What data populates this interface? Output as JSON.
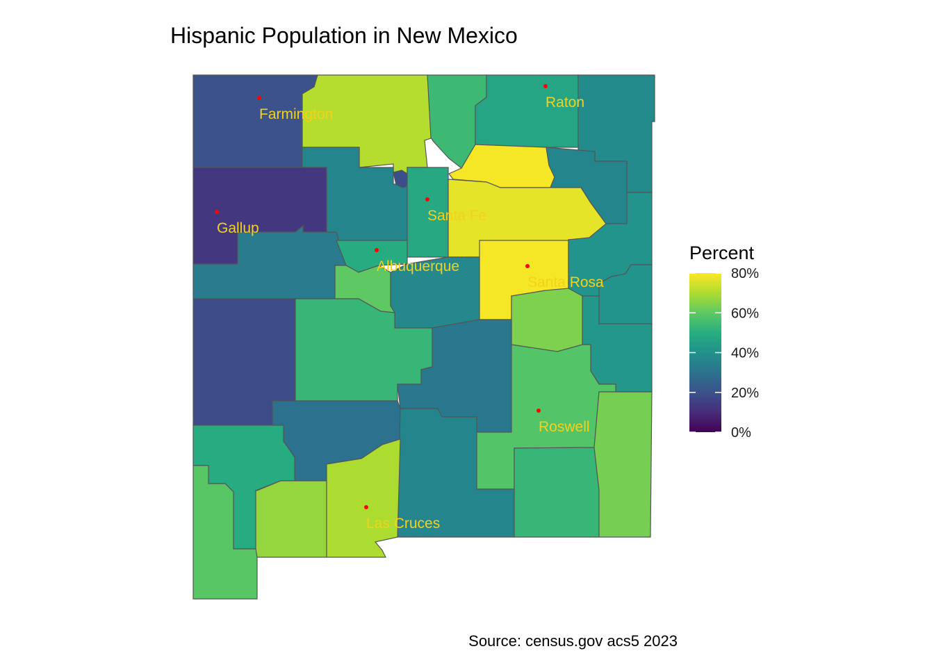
{
  "title": "Hispanic Population in New Mexico",
  "caption": "Source: census.gov acs5 2023",
  "colors": {
    "city_dot": "#ff0000",
    "city_label": "#f3d21c",
    "county_border": "#555555",
    "scale": [
      "#440154",
      "#472d7b",
      "#3b528b",
      "#2c728e",
      "#21918c",
      "#28ae80",
      "#5ec962",
      "#addc30",
      "#fde725"
    ]
  },
  "legend": {
    "title": "Percent",
    "ticks": [
      "80%",
      "60%",
      "40%",
      "20%",
      "0%"
    ],
    "range": [
      0,
      80
    ]
  },
  "cities": [
    {
      "name": "Farmington"
    },
    {
      "name": "Raton"
    },
    {
      "name": "Gallup"
    },
    {
      "name": "Santa Fe"
    },
    {
      "name": "Albuquerque"
    },
    {
      "name": "Santa Rosa"
    },
    {
      "name": "Roswell"
    },
    {
      "name": "Las Cruces"
    }
  ],
  "map_data": {
    "measure": "Hispanic population share by county",
    "counties": [
      {
        "id": "san-juan",
        "percent": 20
      },
      {
        "id": "rio-arriba",
        "percent": 71
      },
      {
        "id": "taos",
        "percent": 54
      },
      {
        "id": "colfax",
        "percent": 47
      },
      {
        "id": "union",
        "percent": 38
      },
      {
        "id": "mora",
        "percent": 79
      },
      {
        "id": "harding",
        "percent": 36
      },
      {
        "id": "sandoval",
        "percent": 36
      },
      {
        "id": "los-alamos",
        "percent": 19
      },
      {
        "id": "santa-fe",
        "percent": 48
      },
      {
        "id": "san-miguel",
        "percent": 77
      },
      {
        "id": "mckinley",
        "percent": 13
      },
      {
        "id": "cibola",
        "percent": 33
      },
      {
        "id": "bernalillo",
        "percent": 49
      },
      {
        "id": "valencia",
        "percent": 60
      },
      {
        "id": "torrance",
        "percent": 37
      },
      {
        "id": "guadalupe",
        "percent": 79
      },
      {
        "id": "quay",
        "percent": 41
      },
      {
        "id": "curry",
        "percent": 41
      },
      {
        "id": "de-baca",
        "percent": 64
      },
      {
        "id": "roosevelt",
        "percent": 42
      },
      {
        "id": "catron",
        "percent": 18
      },
      {
        "id": "socorro",
        "percent": 53
      },
      {
        "id": "lincoln",
        "percent": 32
      },
      {
        "id": "chaves",
        "percent": 58
      },
      {
        "id": "sierra",
        "percent": 30
      },
      {
        "id": "otero",
        "percent": 36
      },
      {
        "id": "eddy",
        "percent": 53
      },
      {
        "id": "lea",
        "percent": 63
      },
      {
        "id": "grant",
        "percent": 49
      },
      {
        "id": "hidalgo",
        "percent": 59
      },
      {
        "id": "luna",
        "percent": 67
      },
      {
        "id": "dona-ana",
        "percent": 70
      }
    ]
  }
}
